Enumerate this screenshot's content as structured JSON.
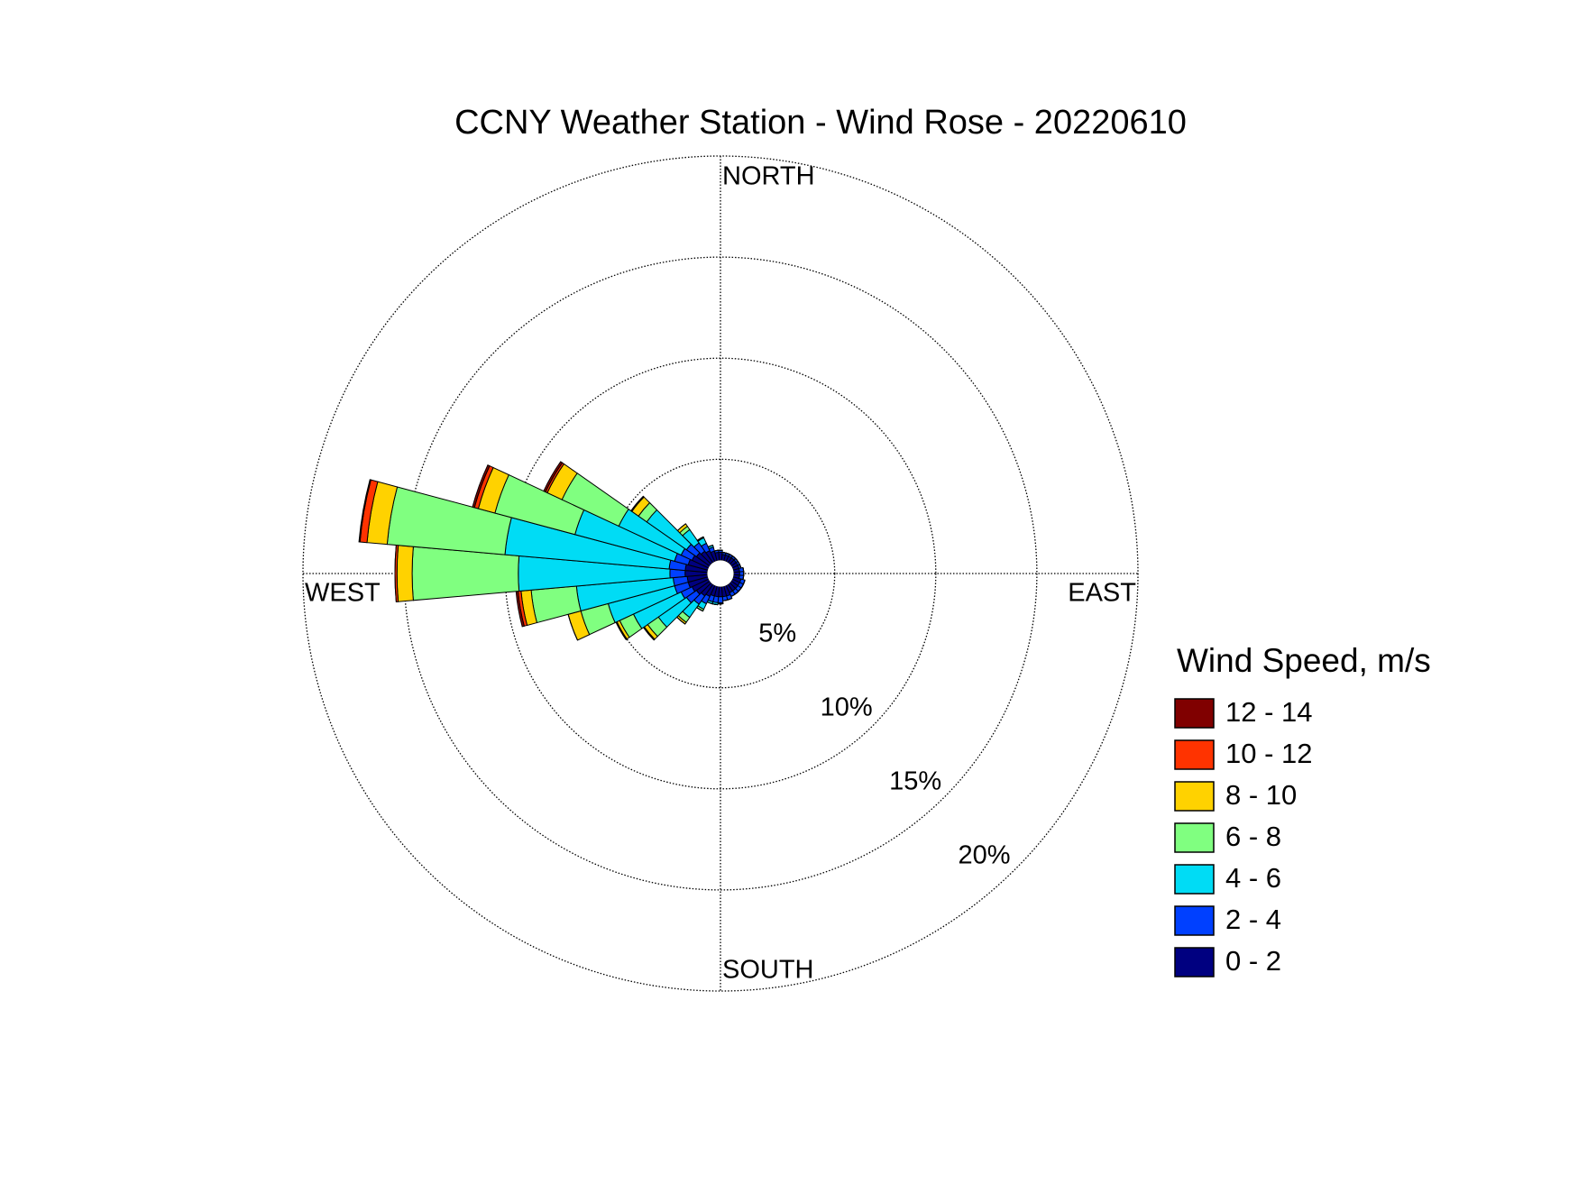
{
  "chart_data": {
    "type": "windrose",
    "title": "CCNY Weather Station - Wind Rose - 20220610",
    "direction_labels": [
      "NORTH",
      "EAST",
      "SOUTH",
      "WEST"
    ],
    "directions": [
      0,
      10,
      20,
      30,
      40,
      50,
      60,
      70,
      80,
      90,
      100,
      110,
      120,
      130,
      140,
      150,
      160,
      170,
      180,
      190,
      200,
      210,
      220,
      230,
      240,
      250,
      260,
      270,
      280,
      290,
      300,
      310,
      320,
      330,
      340,
      350
    ],
    "rlim": [
      0,
      20
    ],
    "rticks": [
      {
        "value": 5,
        "label": "5%"
      },
      {
        "value": 10,
        "label": "10%"
      },
      {
        "value": 15,
        "label": "15%"
      },
      {
        "value": 20,
        "label": "20%"
      }
    ],
    "grid": true,
    "legend_title": "Wind Speed, m/s",
    "legend_position": "right",
    "series": [
      {
        "name": "0 - 2",
        "color": "#000080",
        "values": [
          0.4,
          0.3,
          0.3,
          0.3,
          0.3,
          0.3,
          0.3,
          0.3,
          0.3,
          0.3,
          0.3,
          0.4,
          0.4,
          0.4,
          0.4,
          0.4,
          0.5,
          0.5,
          0.5,
          0.5,
          0.5,
          0.6,
          0.7,
          0.8,
          0.9,
          1.0,
          1.0,
          1.1,
          1.1,
          1.0,
          0.9,
          0.8,
          0.7,
          0.6,
          0.5,
          0.4
        ]
      },
      {
        "name": "2 - 4",
        "color": "#0040ff",
        "values": [
          0.1,
          0.1,
          0.1,
          0.1,
          0.1,
          0.1,
          0.1,
          0.1,
          0.2,
          0.2,
          0.2,
          0.2,
          0.2,
          0.2,
          0.2,
          0.2,
          0.2,
          0.2,
          0.3,
          0.3,
          0.3,
          0.4,
          0.5,
          0.6,
          0.6,
          0.7,
          0.7,
          0.75,
          0.8,
          0.7,
          0.6,
          0.6,
          0.5,
          0.4,
          0.2,
          0.1
        ]
      },
      {
        "name": "4 - 6",
        "color": "#00dcf5",
        "values": [
          0,
          0,
          0,
          0,
          0,
          0,
          0,
          0,
          0,
          0,
          0,
          0,
          0,
          0,
          0,
          0,
          0,
          0,
          0.05,
          0.1,
          0.1,
          0.3,
          0.8,
          1.7,
          2.6,
          3.4,
          4.8,
          7.5,
          8.15,
          5.1,
          3.4,
          2.4,
          0.8,
          0.3,
          0.1,
          0
        ]
      },
      {
        "name": "6 - 8",
        "color": "#80ff80",
        "values": [
          0,
          0,
          0,
          0,
          0,
          0,
          0,
          0,
          0,
          0,
          0,
          0,
          0,
          0,
          0,
          0,
          0,
          0,
          0,
          0,
          0,
          0.1,
          0.3,
          0.65,
          0.75,
          1.4,
          2.25,
          5.25,
          5.85,
          4.1,
          3.1,
          0.5,
          0.2,
          0.05,
          0,
          0
        ]
      },
      {
        "name": "8 - 10",
        "color": "#ffd200",
        "values": [
          0,
          0,
          0,
          0,
          0,
          0,
          0,
          0,
          0,
          0,
          0,
          0,
          0,
          0,
          0,
          0,
          0,
          0,
          0,
          0,
          0,
          0,
          0.1,
          0.2,
          0.15,
          0.65,
          0.5,
          0.75,
          1.0,
          0.85,
          0.8,
          0.4,
          0.15,
          0,
          0,
          0
        ]
      },
      {
        "name": "10 - 12",
        "color": "#ff3300",
        "values": [
          0,
          0,
          0,
          0,
          0,
          0,
          0,
          0,
          0,
          0,
          0,
          0,
          0,
          0,
          0,
          0,
          0,
          0,
          0,
          0,
          0,
          0,
          0,
          0.05,
          0.05,
          0,
          0.15,
          0.1,
          0.35,
          0.2,
          0.1,
          0.05,
          0,
          0,
          0,
          0
        ]
      },
      {
        "name": "12 - 14",
        "color": "#800000",
        "values": [
          0,
          0,
          0,
          0,
          0,
          0,
          0,
          0,
          0,
          0,
          0,
          0,
          0,
          0,
          0,
          0,
          0,
          0,
          0,
          0,
          0,
          0,
          0,
          0,
          0,
          0,
          0.1,
          0,
          0.05,
          0.1,
          0.1,
          0,
          0,
          0,
          0,
          0
        ]
      }
    ]
  }
}
